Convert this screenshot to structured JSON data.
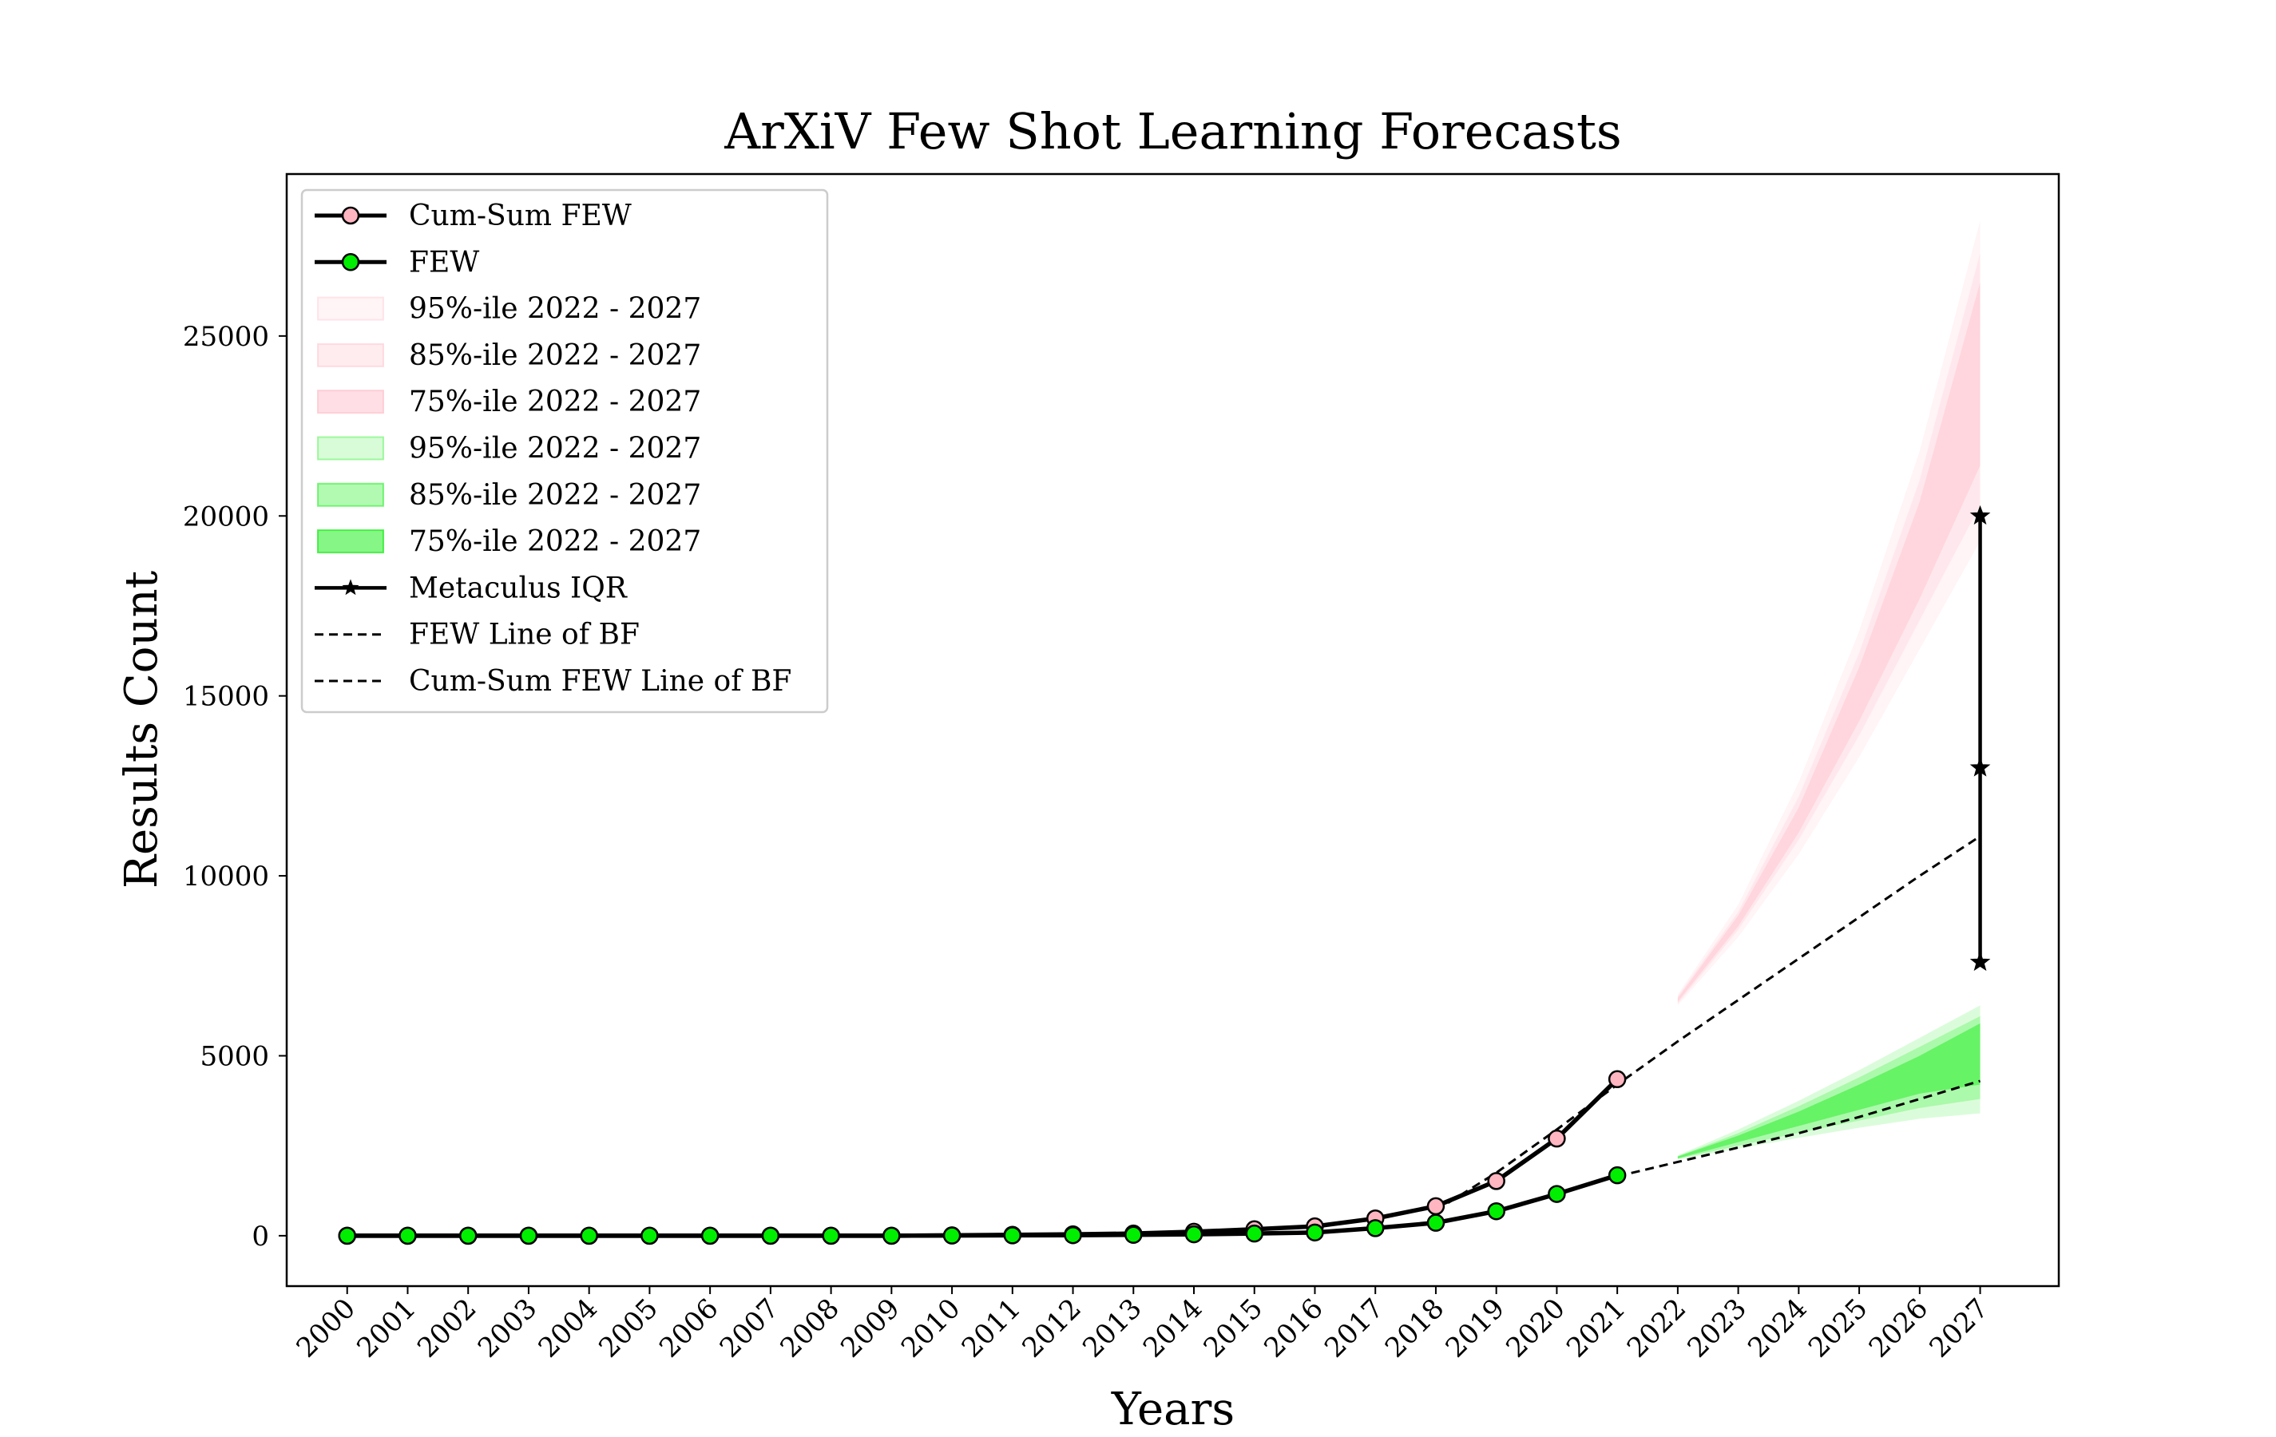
{
  "chart_data": {
    "type": "line",
    "title": "ArXiV Few Shot Learning Forecasts",
    "xlabel": "Years",
    "ylabel": "Results Count",
    "x": [
      2000,
      2001,
      2002,
      2003,
      2004,
      2005,
      2006,
      2007,
      2008,
      2009,
      2010,
      2011,
      2012,
      2013,
      2014,
      2015,
      2016,
      2017,
      2018,
      2019,
      2020,
      2021,
      2022,
      2023,
      2024,
      2025,
      2026,
      2027
    ],
    "xlim": [
      1999,
      2028.3
    ],
    "ylim": [
      -1400,
      29500
    ],
    "yticks": [
      0,
      5000,
      10000,
      15000,
      20000,
      25000
    ],
    "grid": false,
    "legend_position": "upper-left",
    "colors": {
      "cumsum": "#ffb6c1",
      "few": "#00ee00",
      "band_pink": "#ffc0cb",
      "band_green": "#22ee22",
      "line": "#000000"
    },
    "series": [
      {
        "name": "Cum-Sum FEW",
        "marker": "circle",
        "marker_color": "#ffb6c1",
        "x": [
          2000,
          2001,
          2002,
          2003,
          2004,
          2005,
          2006,
          2007,
          2008,
          2009,
          2010,
          2011,
          2012,
          2013,
          2014,
          2015,
          2016,
          2017,
          2018,
          2019,
          2020,
          2021
        ],
        "values": [
          0,
          0,
          0,
          0,
          0,
          0,
          0,
          0,
          0,
          0,
          10,
          25,
          40,
          60,
          110,
          180,
          260,
          480,
          820,
          1520,
          2700,
          4350
        ]
      },
      {
        "name": "FEW",
        "marker": "circle",
        "marker_color": "#00ee00",
        "x": [
          2000,
          2001,
          2002,
          2003,
          2004,
          2005,
          2006,
          2007,
          2008,
          2009,
          2010,
          2011,
          2012,
          2013,
          2014,
          2015,
          2016,
          2017,
          2018,
          2019,
          2020,
          2021
        ],
        "values": [
          0,
          0,
          0,
          0,
          0,
          0,
          0,
          0,
          0,
          0,
          5,
          10,
          15,
          25,
          40,
          60,
          90,
          210,
          360,
          680,
          1160,
          1680
        ]
      },
      {
        "name": "Metaculus IQR",
        "marker": "star",
        "x": [
          2027,
          2027,
          2027
        ],
        "values": [
          7600,
          13000,
          20000
        ]
      },
      {
        "name": "FEW Line of BF",
        "style": "dashed",
        "x": [
          2021,
          2022,
          2023,
          2024,
          2025,
          2026,
          2027
        ],
        "values": [
          1650,
          2050,
          2450,
          2850,
          3300,
          3800,
          4300
        ]
      },
      {
        "name": "Cum-Sum FEW Line of BF",
        "style": "dashed",
        "x": [
          2018,
          2019,
          2020,
          2021,
          2022,
          2023,
          2024,
          2025,
          2026,
          2027
        ],
        "values": [
          700,
          1750,
          2950,
          4200,
          5400,
          6550,
          7700,
          8850,
          10000,
          11100
        ]
      }
    ],
    "bands": [
      {
        "name": "95%-ile 2022 - 2027",
        "group": "cumsum",
        "opacity": 0.18,
        "x": [
          2022,
          2023,
          2024,
          2025,
          2026,
          2027
        ],
        "lower": [
          6400,
          8300,
          10600,
          13300,
          16300,
          19300
        ],
        "upper": [
          6700,
          9200,
          12600,
          16800,
          21800,
          28200
        ]
      },
      {
        "name": "85%-ile 2022 - 2027",
        "group": "cumsum",
        "opacity": 0.22,
        "x": [
          2022,
          2023,
          2024,
          2025,
          2026,
          2027
        ],
        "lower": [
          6450,
          8500,
          11000,
          13900,
          17100,
          20300
        ],
        "upper": [
          6650,
          9000,
          12200,
          16200,
          21000,
          27300
        ]
      },
      {
        "name": "75%-ile 2022 - 2027",
        "group": "cumsum",
        "opacity": 0.45,
        "x": [
          2022,
          2023,
          2024,
          2025,
          2026,
          2027
        ],
        "lower": [
          6500,
          8600,
          11200,
          14300,
          17700,
          21400
        ],
        "upper": [
          6600,
          8900,
          11900,
          15800,
          20400,
          26500
        ]
      },
      {
        "name": "95%-ile 2022 - 2027",
        "group": "few",
        "opacity": 0.16,
        "x": [
          2022,
          2023,
          2024,
          2025,
          2026,
          2027
        ],
        "lower": [
          2120,
          2420,
          2720,
          3000,
          3250,
          3400
        ],
        "upper": [
          2230,
          2950,
          3750,
          4600,
          5500,
          6400
        ]
      },
      {
        "name": "85%-ile 2022 - 2027",
        "group": "few",
        "opacity": 0.26,
        "x": [
          2022,
          2023,
          2024,
          2025,
          2026,
          2027
        ],
        "lower": [
          2140,
          2500,
          2860,
          3200,
          3550,
          3800
        ],
        "upper": [
          2210,
          2850,
          3600,
          4400,
          5250,
          6100
        ]
      },
      {
        "name": "75%-ile 2022 - 2027",
        "group": "few",
        "opacity": 0.5,
        "x": [
          2022,
          2023,
          2024,
          2025,
          2026,
          2027
        ],
        "lower": [
          2150,
          2600,
          3050,
          3500,
          3950,
          4200
        ],
        "upper": [
          2200,
          2780,
          3450,
          4200,
          5000,
          5900
        ]
      }
    ],
    "legend": [
      {
        "label": "Cum-Sum FEW",
        "kind": "marker-line",
        "color": "#ffb6c1"
      },
      {
        "label": "FEW",
        "kind": "marker-line",
        "color": "#00ee00"
      },
      {
        "label": "95%-ile 2022 - 2027",
        "kind": "patch",
        "color": "#ffc0cb",
        "opacity": 0.18
      },
      {
        "label": "85%-ile 2022 - 2027",
        "kind": "patch",
        "color": "#ffc0cb",
        "opacity": 0.3
      },
      {
        "label": "75%-ile 2022 - 2027",
        "kind": "patch",
        "color": "#ffc0cb",
        "opacity": 0.5
      },
      {
        "label": "95%-ile 2022 - 2027",
        "kind": "patch",
        "color": "#22ee22",
        "opacity": 0.18
      },
      {
        "label": "85%-ile 2022 - 2027",
        "kind": "patch",
        "color": "#22ee22",
        "opacity": 0.35
      },
      {
        "label": "75%-ile 2022 - 2027",
        "kind": "patch",
        "color": "#22ee22",
        "opacity": 0.55
      },
      {
        "label": "Metaculus IQR",
        "kind": "star-line",
        "color": "#000000"
      },
      {
        "label": "FEW Line of BF",
        "kind": "dashed",
        "color": "#000000"
      },
      {
        "label": "Cum-Sum FEW Line of BF",
        "kind": "dashed",
        "color": "#000000"
      }
    ]
  }
}
